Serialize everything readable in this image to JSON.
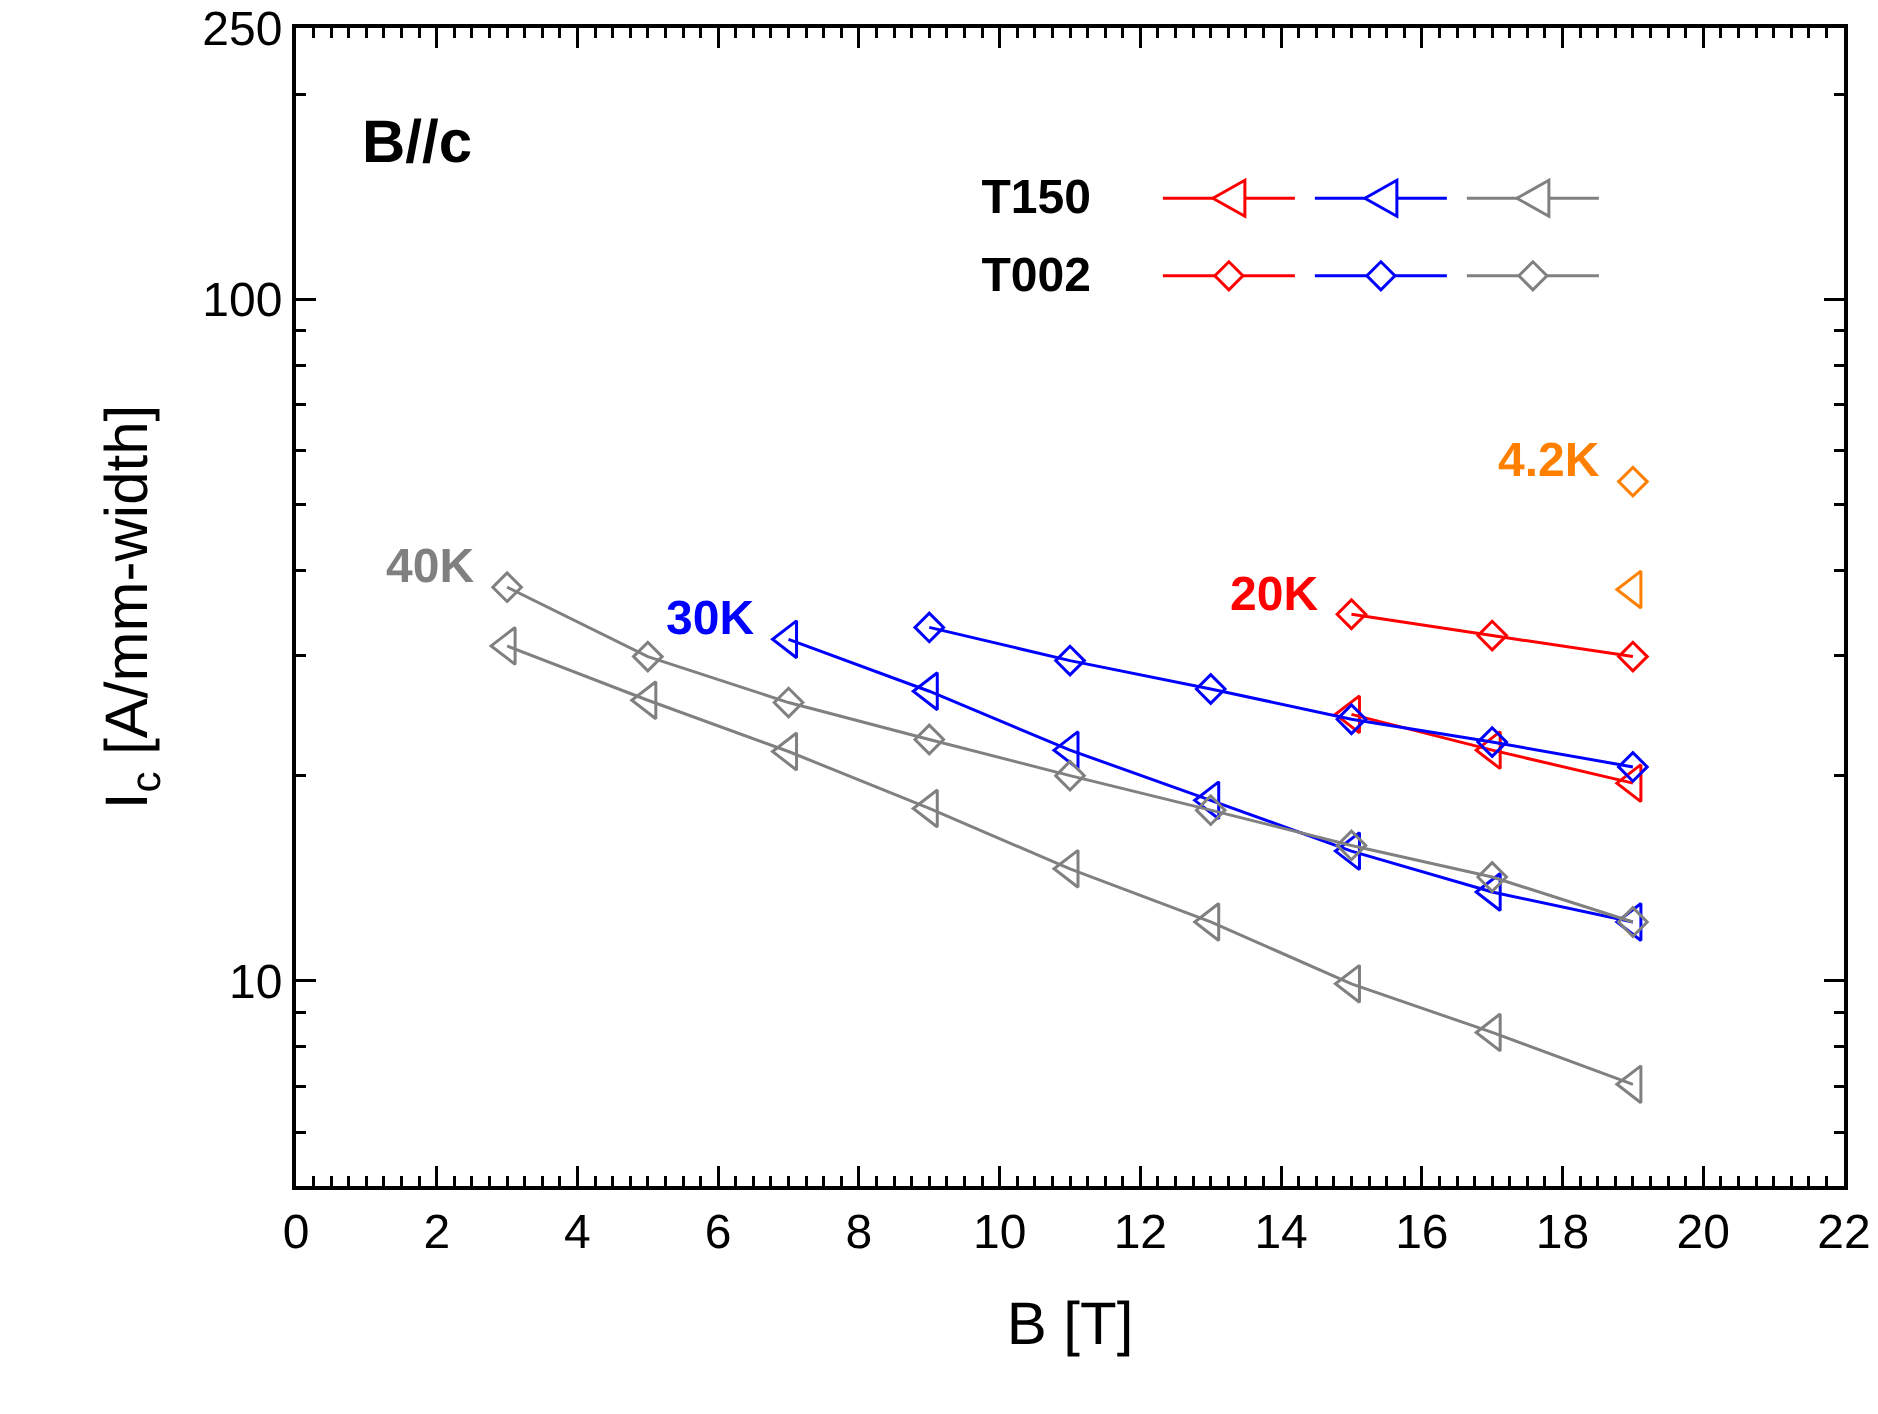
{
  "chart_data": {
    "type": "line",
    "xlabel": "B [T]",
    "ylabel": "I$_{c}$ [A/mm-width]",
    "log": "y",
    "xlim": [
      0,
      22
    ],
    "xticks": [
      0,
      2,
      4,
      6,
      8,
      10,
      12,
      14,
      16,
      18,
      20,
      22
    ],
    "ylim": [
      5,
      250
    ],
    "yticks": [
      10,
      100,
      250
    ],
    "grid": false,
    "line_style": "solid",
    "series": [
      {
        "color": "#ff0000",
        "marker": "triangle",
        "x": [
          15,
          17,
          19
        ],
        "values": [
          24.6,
          21.8,
          19.5
        ]
      },
      {
        "name": "30K",
        "color": "#0000ff",
        "marker": "triangle",
        "x": [
          7,
          9,
          11,
          13,
          15,
          17,
          19
        ],
        "values": [
          31.7,
          26.6,
          21.8,
          18.4,
          15.5,
          13.5,
          12.2
        ]
      },
      {
        "color": "#808080",
        "marker": "triangle",
        "x": [
          3,
          5,
          7,
          9,
          11,
          13,
          15,
          17,
          19
        ],
        "values": [
          31.0,
          25.8,
          21.7,
          17.9,
          14.6,
          12.2,
          9.9,
          8.4,
          7.05
        ]
      },
      {
        "name": "20K",
        "color": "#ff0000",
        "marker": "diamond",
        "x": [
          15,
          17,
          19
        ],
        "values": [
          34.5,
          32.1,
          29.9
        ]
      },
      {
        "color": "#0000ff",
        "marker": "diamond",
        "x": [
          9,
          11,
          13,
          15,
          17,
          19
        ],
        "values": [
          33.0,
          29.5,
          26.8,
          24.2,
          22.4,
          20.6
        ]
      },
      {
        "name": "40K",
        "color": "#808080",
        "marker": "diamond",
        "x": [
          3,
          5,
          7,
          9,
          11,
          13,
          15,
          17,
          19
        ],
        "values": [
          37.8,
          29.9,
          25.6,
          22.6,
          20.0,
          17.8,
          15.8,
          14.2,
          12.2
        ]
      },
      {
        "color": "#ff8000",
        "marker": "triangle",
        "x": [
          19
        ],
        "values": [
          37.5
        ]
      },
      {
        "name": "4.2K",
        "color": "#ff8000",
        "marker": "diamond",
        "x": [
          19
        ],
        "values": [
          54
        ]
      }
    ],
    "annotations": [
      "B//c",
      "T150",
      "T002"
    ]
  }
}
